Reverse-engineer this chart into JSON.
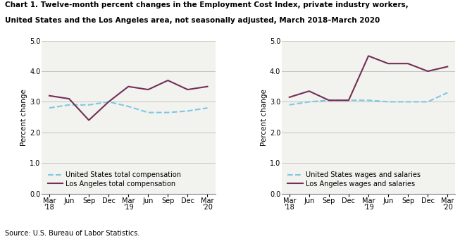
{
  "title_line1": "Chart 1. Twelve-month percent changes in the Employment Cost Index, private industry workers,",
  "title_line2": "United States and the Los Angeles area, not seasonally adjusted, March 2018–March 2020",
  "source": "Source: U.S. Bureau of Labor Statistics.",
  "x_labels": [
    "Mar\n'18",
    "Jun",
    "Sep",
    "Dec",
    "Mar\n'19",
    "Jun",
    "Sep",
    "Dec",
    "Mar\n'20"
  ],
  "ylabel": "Percent change",
  "ylim": [
    0.0,
    5.0
  ],
  "yticks": [
    0.0,
    1.0,
    2.0,
    3.0,
    4.0,
    5.0
  ],
  "left_chart": {
    "us_total_comp": [
      2.8,
      2.9,
      2.9,
      3.0,
      2.85,
      2.65,
      2.65,
      2.7,
      2.8
    ],
    "la_total_comp": [
      3.2,
      3.1,
      2.4,
      3.0,
      3.5,
      3.4,
      3.7,
      3.4,
      3.5
    ],
    "legend_us": "United States total compensation",
    "legend_la": "Los Angeles total compensation"
  },
  "right_chart": {
    "us_wages": [
      2.9,
      3.0,
      3.05,
      3.05,
      3.05,
      3.0,
      3.0,
      3.0,
      3.3
    ],
    "la_wages": [
      3.15,
      3.35,
      3.05,
      3.05,
      4.5,
      4.25,
      4.25,
      4.0,
      4.15
    ],
    "legend_us": "United States wages and salaries",
    "legend_la": "Los Angeles wages and salaries"
  },
  "us_color": "#7ec8e3",
  "la_color": "#722f57",
  "linewidth": 1.5,
  "grid_color": "#b0b0b0",
  "background_color": "#ffffff",
  "plot_bg_color": "#f2f2ee",
  "title_fontsize": 7.5,
  "label_fontsize": 7.5,
  "tick_fontsize": 7,
  "legend_fontsize": 7,
  "source_fontsize": 7
}
